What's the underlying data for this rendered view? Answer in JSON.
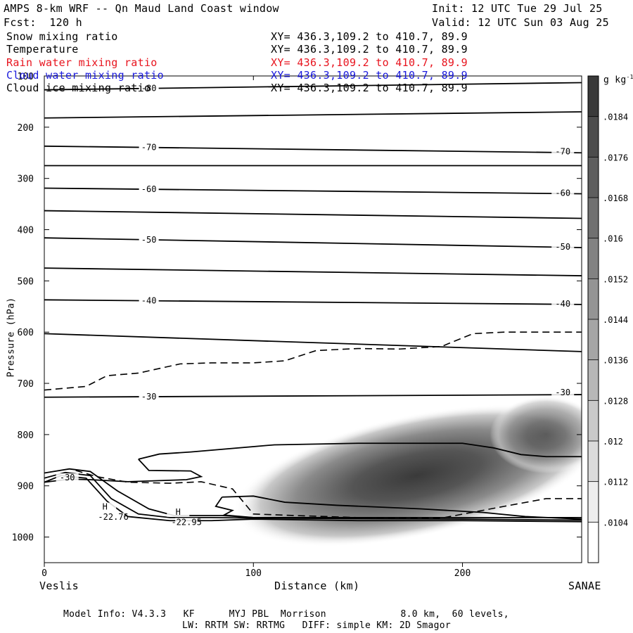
{
  "header": {
    "title": "AMPS 8-km WRF -- Qn Maud Land Coast window",
    "init": "Init: 12 UTC Tue 29 Jul 25",
    "fcst": "Fcst:  120 h",
    "valid": "Valid: 12 UTC Sun 03 Aug 25"
  },
  "legend": [
    {
      "label": "Snow mixing ratio",
      "xy": "XY= 436.3,109.2 to 410.7, 89.9",
      "color": "#000000"
    },
    {
      "label": "Temperature",
      "xy": "XY= 436.3,109.2 to 410.7, 89.9",
      "color": "#000000"
    },
    {
      "label": "Rain water mixing ratio",
      "xy": "XY= 436.3,109.2 to 410.7, 89.9",
      "color": "#e8141e"
    },
    {
      "label": "Cloud water mixing ratio",
      "xy": "XY= 436.3,109.2 to 410.7, 89.9",
      "color": "#1a1adc"
    },
    {
      "label": "Cloud ice mixing ratio",
      "xy": "XY= 436.3,109.2 to 410.7, 89.9",
      "color": "#000000"
    }
  ],
  "footer": {
    "line1": "Model Info: V4.3.3   KF      MYJ PBL  Morrison             8.0 km,  60 levels,",
    "line2": "LW: RRTM SW: RRTMG   DIFF: simple KM: 2D Smagor"
  },
  "chart_data": {
    "type": "heatmap",
    "xlabel": "Distance (km)",
    "ylabel": "Pressure (hPa)",
    "xlim": [
      0,
      257
    ],
    "ylim": [
      1050,
      100
    ],
    "x_ticks": [
      0,
      100,
      200
    ],
    "y_ticks": [
      100,
      200,
      300,
      400,
      500,
      600,
      700,
      800,
      900,
      1000
    ],
    "left_end_label": "Veslis",
    "right_end_label": "SANAE",
    "colorbar": {
      "unit": "g kg",
      "unit_exp": "-1",
      "ticks": [
        ".0104",
        ".0112",
        ".012",
        ".0128",
        ".0136",
        ".0144",
        ".0152",
        ".016",
        ".0168",
        ".0176",
        ".0184"
      ],
      "range": [
        0.01,
        0.0192
      ]
    },
    "shading": {
      "field": "Snow mixing ratio",
      "center": [
        178,
        880
      ],
      "peak": 0.0188,
      "extent_x": [
        105,
        257
      ],
      "extent_p": [
        750,
        960
      ]
    },
    "temperature_isotherms": [
      {
        "label": "-80",
        "x": [
          0,
          257
        ],
        "p": [
          127,
          113
        ]
      },
      {
        "label": "",
        "x": [
          0,
          257
        ],
        "p": [
          182,
          170
        ]
      },
      {
        "label": "-70",
        "x": [
          0,
          257
        ],
        "p": [
          237,
          250
        ]
      },
      {
        "label": "",
        "x": [
          0,
          257
        ],
        "p": [
          275,
          275
        ]
      },
      {
        "label": "-60",
        "x": [
          0,
          257
        ],
        "p": [
          319,
          330
        ]
      },
      {
        "label": "",
        "x": [
          0,
          257
        ],
        "p": [
          363,
          378
        ]
      },
      {
        "label": "-50",
        "x": [
          0,
          257
        ],
        "p": [
          416,
          435
        ]
      },
      {
        "label": "",
        "x": [
          0,
          257
        ],
        "p": [
          475,
          490
        ]
      },
      {
        "label": "-40",
        "x": [
          0,
          257
        ],
        "p": [
          537,
          546
        ]
      },
      {
        "label": "",
        "x": [
          0,
          257
        ],
        "p": [
          603,
          638
        ]
      },
      {
        "label": "-30",
        "x": [
          0,
          257
        ],
        "p": [
          727,
          722
        ]
      }
    ],
    "cloud_contour_dashed": {
      "x": [
        0,
        20,
        30,
        45,
        65,
        80,
        100,
        115,
        130,
        150,
        170,
        190,
        205,
        220,
        257
      ],
      "p": [
        713,
        706,
        685,
        680,
        662,
        660,
        660,
        656,
        636,
        632,
        633,
        628,
        603,
        600,
        600
      ]
    },
    "annotations": [
      {
        "text": "H",
        "x": 29,
        "p": 945
      },
      {
        "text": "-22.76",
        "x": 33,
        "p": 965
      },
      {
        "text": "H",
        "x": 64,
        "p": 955
      },
      {
        "text": "-22.95",
        "x": 68,
        "p": 975
      },
      {
        "text": "-30",
        "x": 11,
        "p": 888
      },
      {
        "text": "-30",
        "x": 248,
        "p": 722
      },
      {
        "text": "-40",
        "x": 248,
        "p": 549
      },
      {
        "text": "-50",
        "x": 248,
        "p": 438
      },
      {
        "text": "-60",
        "x": 248,
        "p": 333
      },
      {
        "text": "-70",
        "x": 248,
        "p": 252
      }
    ]
  }
}
